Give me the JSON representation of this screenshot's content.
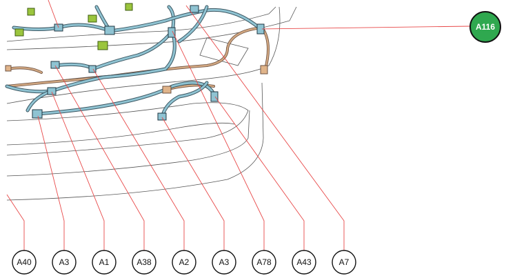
{
  "callouts": [
    "A40",
    "A3",
    "A1",
    "A38",
    "A2",
    "A3",
    "A78",
    "A43",
    "A7"
  ],
  "badge": "A116"
}
